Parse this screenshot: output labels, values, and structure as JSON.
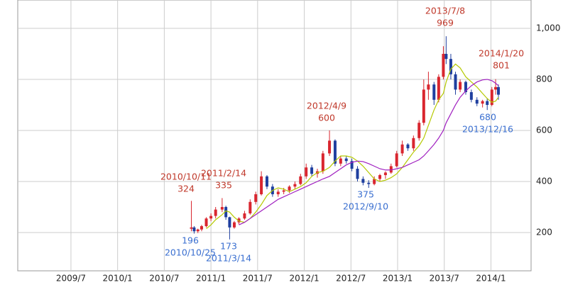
{
  "chart_data": {
    "type": "candlestick",
    "xlim": [
      2008.93,
      2014.43
    ],
    "ylim": [
      50,
      1111
    ],
    "xticks": [
      {
        "value": 2009.5,
        "label": "2009/7"
      },
      {
        "value": 2010.0,
        "label": "2010/1"
      },
      {
        "value": 2010.5,
        "label": "2010/7"
      },
      {
        "value": 2011.0,
        "label": "2011/1"
      },
      {
        "value": 2011.5,
        "label": "2011/7"
      },
      {
        "value": 2012.0,
        "label": "2012/1"
      },
      {
        "value": 2012.5,
        "label": "2012/7"
      },
      {
        "value": 2013.0,
        "label": "2013/1"
      },
      {
        "value": 2013.5,
        "label": "2013/7"
      },
      {
        "value": 2014.0,
        "label": "2014/1"
      }
    ],
    "yticks": [
      200,
      400,
      600,
      800,
      {
        "value": 1000,
        "label": "1,000"
      }
    ],
    "grid": true,
    "up_color": "#d9262f",
    "down_color": "#1f3f9f",
    "x": [
      2010.79,
      2010.82,
      2010.86,
      2010.9,
      2010.95,
      2011.0,
      2011.05,
      2011.12,
      2011.16,
      2011.2,
      2011.25,
      2011.3,
      2011.36,
      2011.42,
      2011.48,
      2011.54,
      2011.6,
      2011.66,
      2011.72,
      2011.78,
      2011.84,
      2011.9,
      2011.96,
      2012.02,
      2012.08,
      2012.14,
      2012.2,
      2012.27,
      2012.33,
      2012.39,
      2012.45,
      2012.51,
      2012.57,
      2012.63,
      2012.69,
      2012.75,
      2012.81,
      2012.87,
      2012.93,
      2012.99,
      2013.05,
      2013.11,
      2013.17,
      2013.23,
      2013.28,
      2013.33,
      2013.39,
      2013.44,
      2013.49,
      2013.52,
      2013.57,
      2013.62,
      2013.67,
      2013.73,
      2013.79,
      2013.85,
      2013.91,
      2013.96,
      2014.01,
      2014.05,
      2014.08
    ],
    "open": [
      215,
      220,
      205,
      212,
      225,
      255,
      265,
      290,
      300,
      260,
      220,
      240,
      255,
      275,
      320,
      350,
      420,
      380,
      350,
      360,
      365,
      380,
      390,
      420,
      455,
      430,
      440,
      510,
      560,
      470,
      490,
      480,
      450,
      410,
      395,
      390,
      410,
      425,
      435,
      460,
      510,
      545,
      530,
      570,
      630,
      760,
      780,
      720,
      810,
      900,
      880,
      820,
      760,
      790,
      750,
      720,
      705,
      715,
      700,
      760,
      770
    ],
    "high": [
      324,
      225,
      215,
      230,
      260,
      275,
      300,
      335,
      305,
      262,
      245,
      260,
      285,
      330,
      360,
      440,
      425,
      390,
      370,
      375,
      385,
      400,
      430,
      470,
      465,
      450,
      520,
      600,
      565,
      500,
      500,
      490,
      460,
      420,
      405,
      420,
      430,
      440,
      470,
      520,
      560,
      550,
      580,
      640,
      800,
      830,
      790,
      820,
      930,
      969,
      900,
      830,
      800,
      795,
      760,
      730,
      720,
      725,
      770,
      801,
      780
    ],
    "low": [
      205,
      196,
      198,
      205,
      220,
      245,
      255,
      280,
      250,
      173,
      215,
      232,
      250,
      270,
      310,
      345,
      370,
      340,
      340,
      350,
      355,
      370,
      385,
      410,
      420,
      415,
      430,
      500,
      460,
      460,
      470,
      440,
      400,
      385,
      375,
      385,
      400,
      410,
      430,
      455,
      500,
      520,
      520,
      560,
      620,
      720,
      700,
      710,
      800,
      860,
      800,
      740,
      750,
      740,
      710,
      695,
      690,
      680,
      695,
      740,
      720
    ],
    "close": [
      220,
      205,
      212,
      225,
      255,
      265,
      290,
      300,
      260,
      220,
      240,
      255,
      275,
      320,
      350,
      420,
      380,
      350,
      360,
      365,
      380,
      390,
      420,
      455,
      430,
      440,
      510,
      560,
      470,
      490,
      480,
      450,
      410,
      395,
      390,
      410,
      425,
      435,
      460,
      510,
      545,
      530,
      570,
      630,
      760,
      780,
      720,
      810,
      900,
      880,
      820,
      760,
      790,
      750,
      720,
      705,
      715,
      700,
      760,
      770,
      740
    ],
    "series": [
      {
        "color": "#b5c900",
        "values": [
          null,
          null,
          null,
          null,
          215,
          230,
          250,
          270,
          285,
          280,
          260,
          245,
          240,
          255,
          280,
          310,
          345,
          365,
          375,
          370,
          360,
          370,
          380,
          395,
          420,
          435,
          440,
          455,
          480,
          500,
          500,
          495,
          480,
          460,
          435,
          410,
          400,
          405,
          415,
          430,
          455,
          485,
          515,
          540,
          570,
          620,
          680,
          720,
          745,
          790,
          840,
          860,
          845,
          810,
          790,
          770,
          745,
          725,
          710,
          715,
          730
        ]
      },
      {
        "color": "#a020c0",
        "values": [
          null,
          null,
          null,
          null,
          null,
          null,
          null,
          null,
          null,
          null,
          null,
          230,
          240,
          255,
          270,
          285,
          300,
          315,
          330,
          340,
          350,
          360,
          370,
          380,
          390,
          400,
          410,
          420,
          435,
          450,
          465,
          475,
          480,
          478,
          470,
          460,
          450,
          445,
          445,
          450,
          455,
          465,
          475,
          485,
          500,
          520,
          545,
          570,
          600,
          630,
          665,
          700,
          730,
          755,
          775,
          790,
          798,
          800,
          795,
          785,
          775
        ]
      }
    ],
    "annotations": [
      {
        "date": "2010/10/11",
        "value": 324,
        "kind": "high"
      },
      {
        "date": "2011/2/14",
        "value": 335,
        "kind": "high"
      },
      {
        "date": "2010/10/25",
        "value": 196,
        "kind": "low"
      },
      {
        "date": "2011/3/14",
        "value": 173,
        "kind": "low"
      },
      {
        "date": "2012/4/9",
        "value": 600,
        "kind": "high"
      },
      {
        "date": "2012/9/10",
        "value": 375,
        "kind": "low"
      },
      {
        "date": "2013/7/8",
        "value": 969,
        "kind": "high"
      },
      {
        "date": "2014/1/20",
        "value": 801,
        "kind": "high"
      },
      {
        "date": "2013/12/16",
        "value": 680,
        "kind": "low"
      }
    ]
  }
}
